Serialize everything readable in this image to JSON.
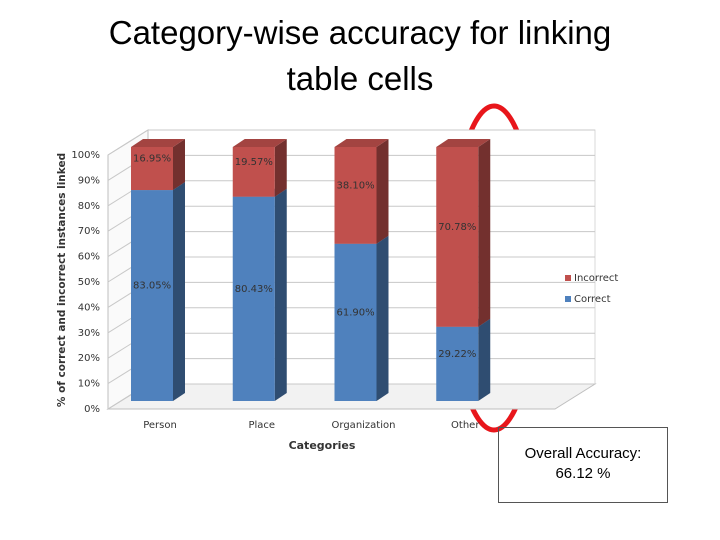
{
  "chart_data": {
    "type": "stacked_bar_3d",
    "title": "Category-wise accuracy for linking table cells",
    "x_label": "Categories",
    "y_label": "% of correct and incorrect instances linked",
    "categories": [
      "Person",
      "Place",
      "Organization",
      "Other"
    ],
    "series": [
      {
        "name": "Correct",
        "color": "#4f81bd",
        "values": [
          83.05,
          80.43,
          61.9,
          29.22
        ],
        "value_labels": [
          "83.05%",
          "80.43%",
          "61.90%",
          "29.22%"
        ]
      },
      {
        "name": "Incorrect",
        "color": "#c0504d",
        "values": [
          16.95,
          19.57,
          38.1,
          70.78
        ],
        "value_labels": [
          "16.95%",
          "19.57%",
          "38.10%",
          "70.78%"
        ]
      }
    ],
    "ylim": [
      0,
      100
    ],
    "yticks": [
      {
        "value": 0,
        "label": "0%"
      },
      {
        "value": 10,
        "label": "10%"
      },
      {
        "value": 20,
        "label": "20%"
      },
      {
        "value": 30,
        "label": "30%"
      },
      {
        "value": 40,
        "label": "40%"
      },
      {
        "value": 50,
        "label": "50%"
      },
      {
        "value": 60,
        "label": "60%"
      },
      {
        "value": 70,
        "label": "70%"
      },
      {
        "value": 80,
        "label": "80%"
      },
      {
        "value": 90,
        "label": "90%"
      },
      {
        "value": 100,
        "label": "100%"
      }
    ],
    "grid": true,
    "legend": "right",
    "annotation": "Overall Accuracy: 66.12 %"
  }
}
